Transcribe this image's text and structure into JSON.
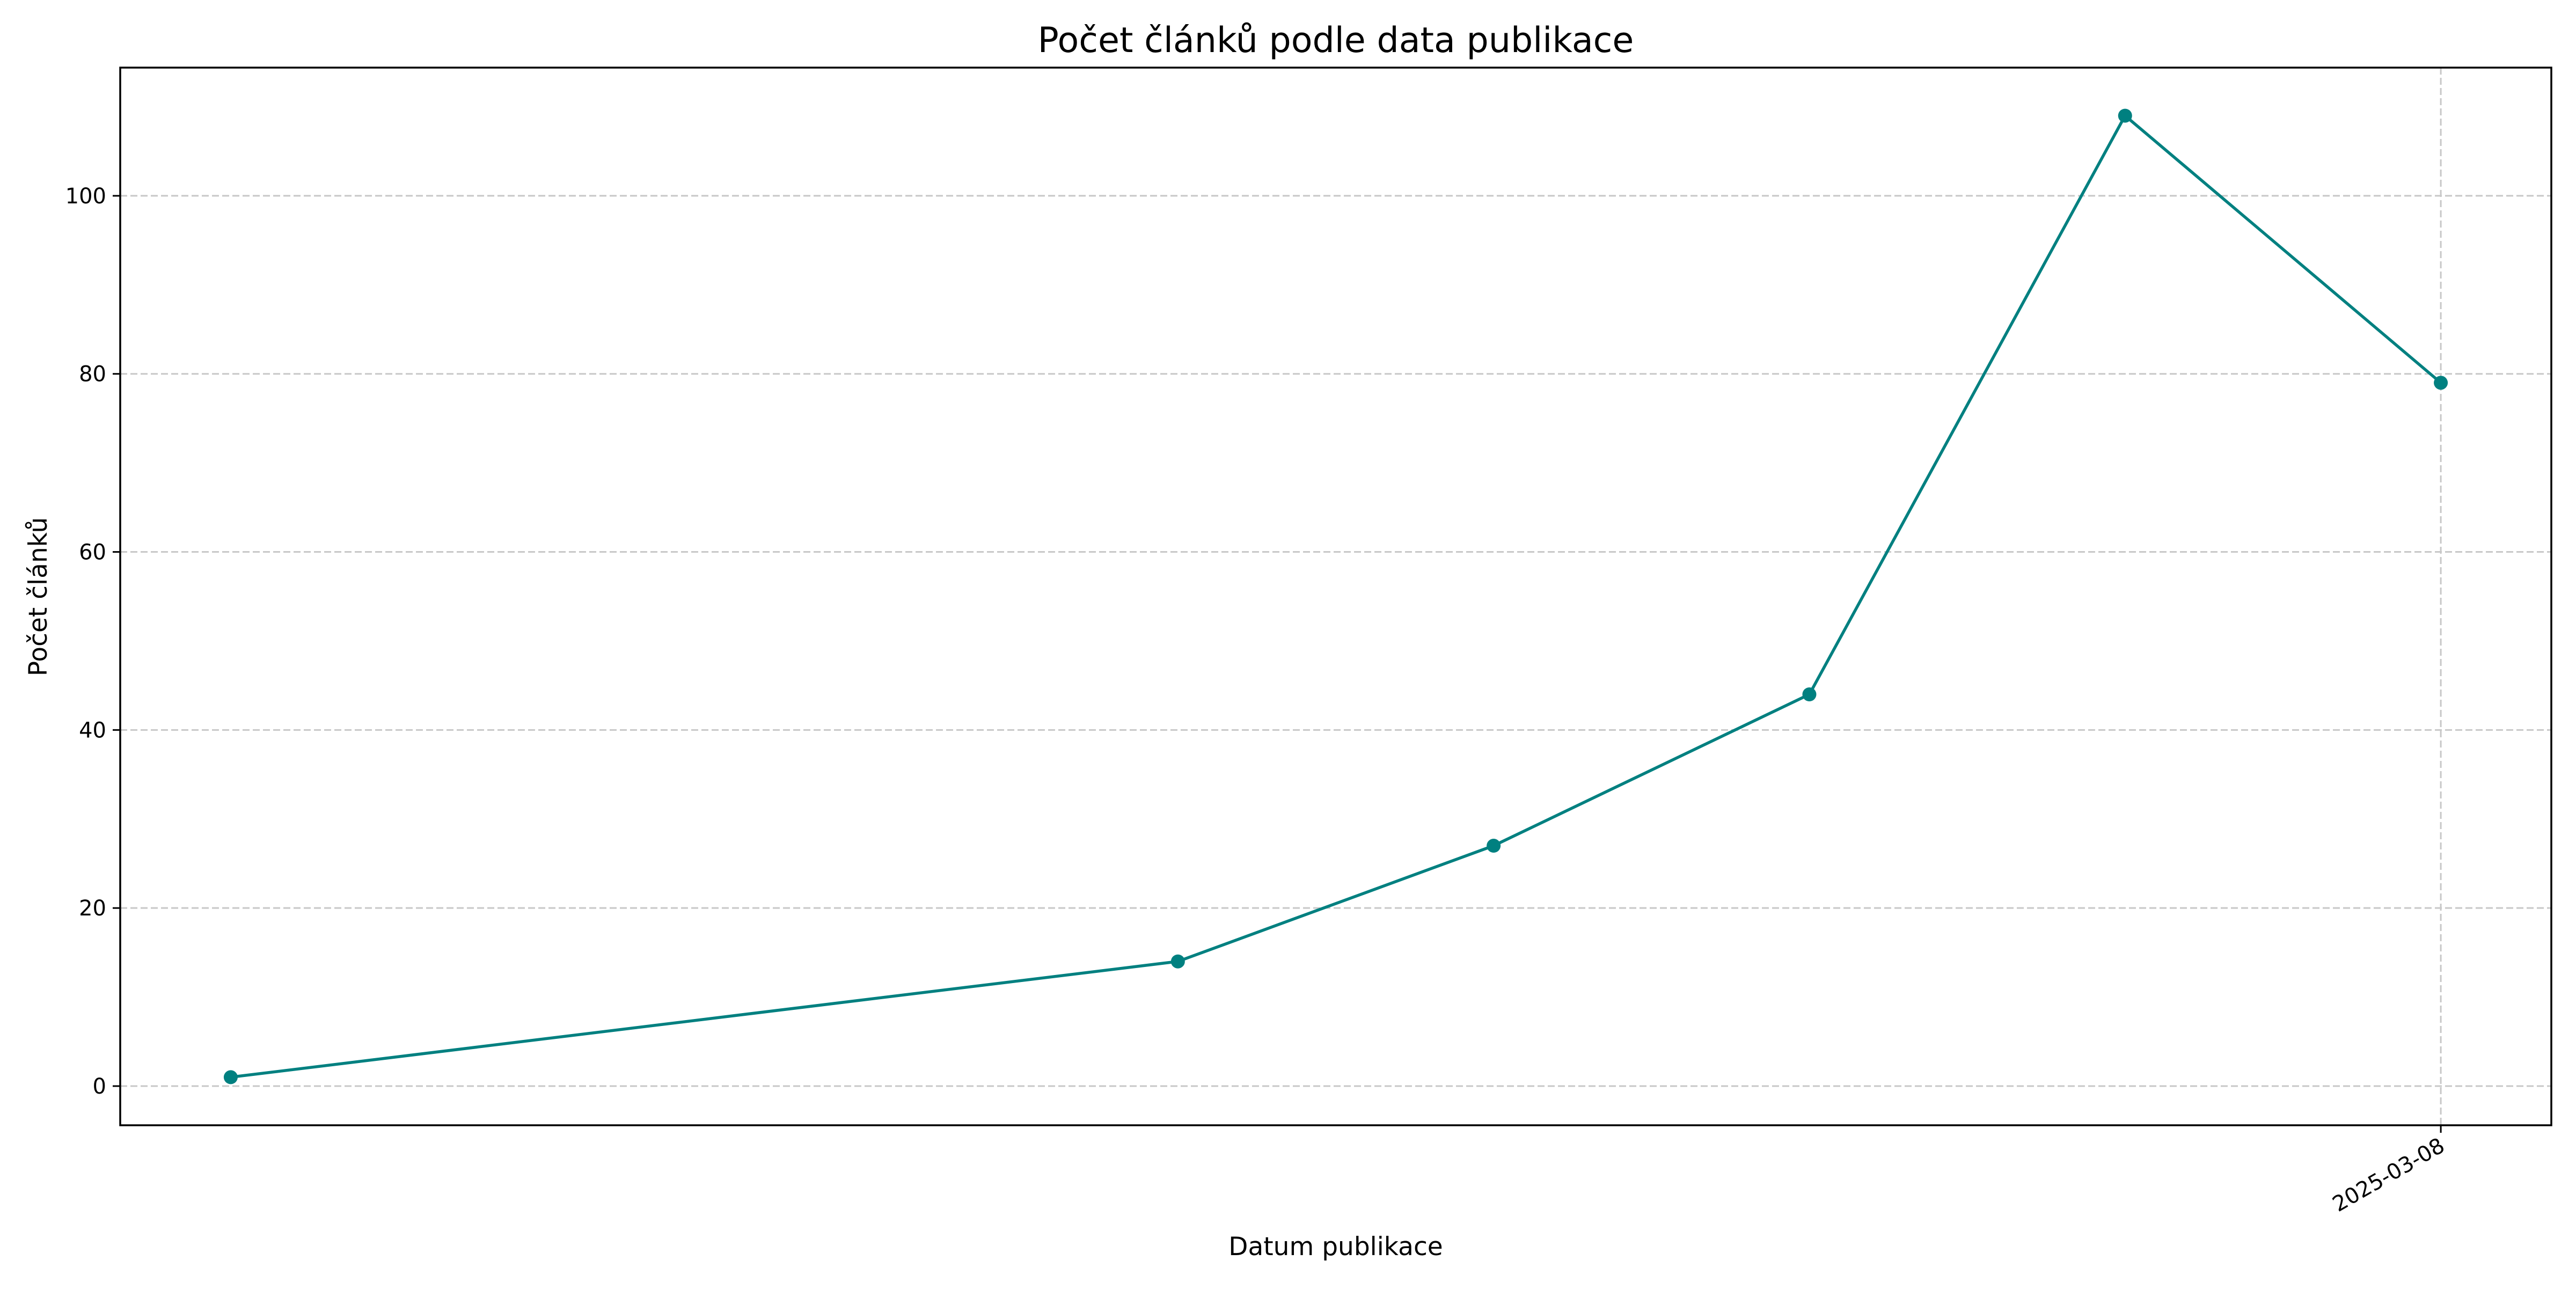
{
  "chart_data": {
    "type": "line",
    "title": "Počet článků podle data publikace",
    "xlabel": "Datum publikace",
    "ylabel": "Počet článků",
    "x": [
      "2025-03-01",
      "2025-03-04",
      "2025-03-05",
      "2025-03-06",
      "2025-03-07",
      "2025-03-08"
    ],
    "x_ticks": [
      "2025-03-08"
    ],
    "y_ticks": [
      0,
      20,
      40,
      60,
      80,
      100
    ],
    "ylim": [
      -4.4,
      114.4
    ],
    "grid": true,
    "series": [
      {
        "values": [
          1,
          14,
          27,
          44,
          109,
          79
        ],
        "color": "#008080"
      }
    ]
  }
}
